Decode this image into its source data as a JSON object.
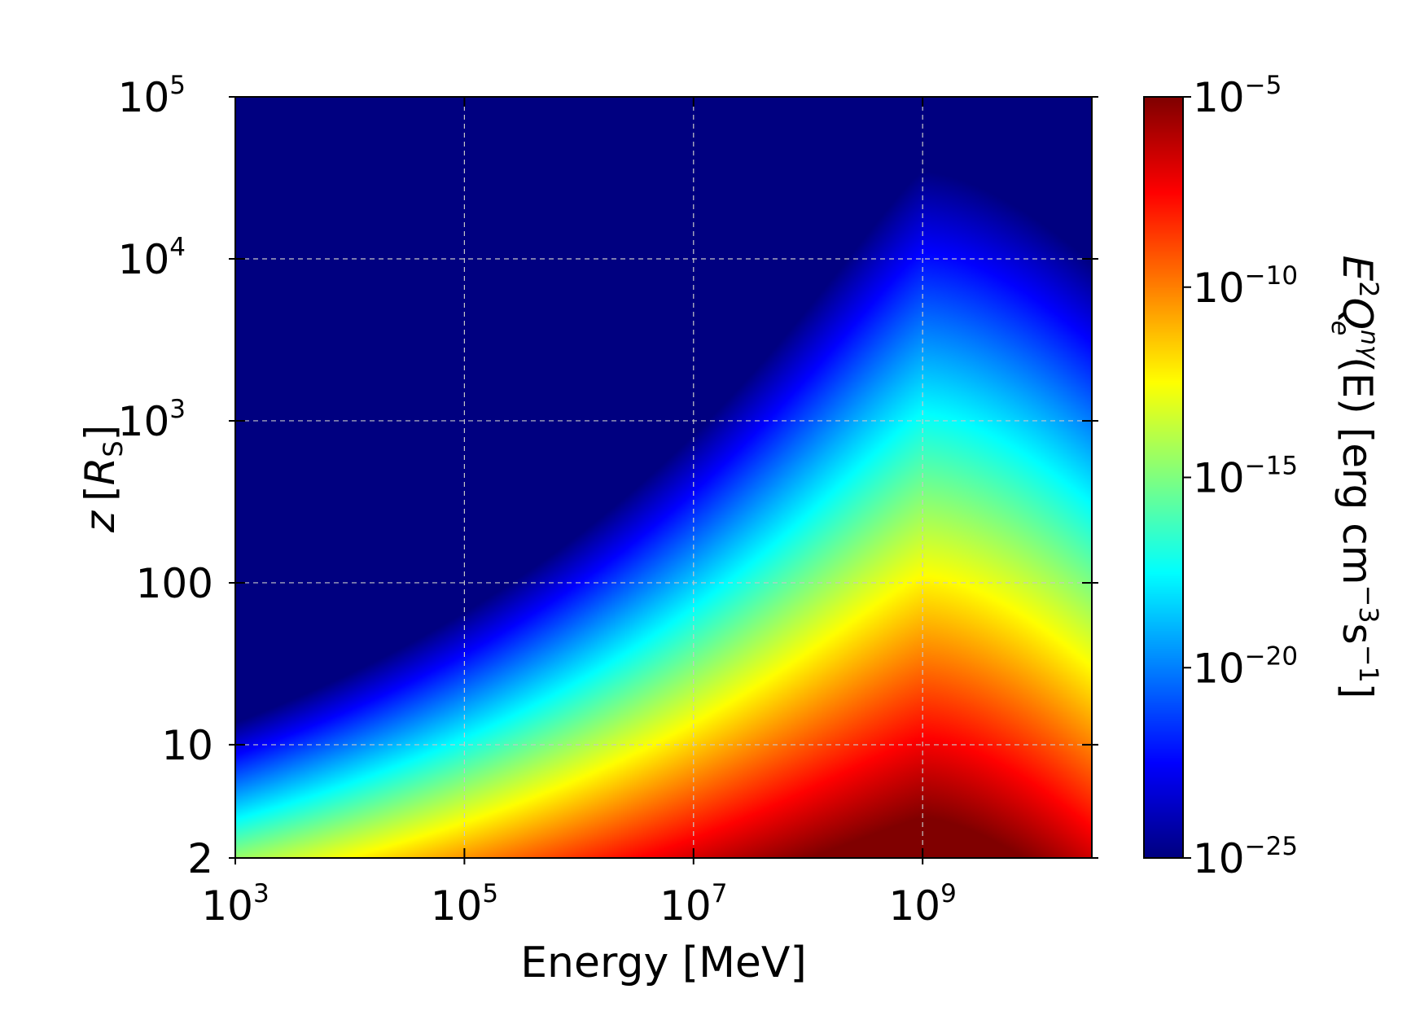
{
  "chart_data": {
    "type": "heatmap",
    "title": "",
    "xlabel": "Energy [MeV]",
    "ylabel_var": "z",
    "ylabel_unit_open": "[",
    "ylabel_unit_sym": "R",
    "ylabel_unit_sub": "S",
    "ylabel_unit_close": "]",
    "colorbar_label": {
      "E": "E",
      "E_exp": "2",
      "Q": "Q",
      "Q_sub": "e",
      "Q_sup": "nγ",
      "arg": "(E)",
      "units_lead": " [erg cm",
      "cm_exp": "−3",
      "s": "s",
      "s_exp": "−1",
      "units_close": "]"
    },
    "x_scale": "log",
    "y_scale": "log",
    "colorbar_scale": "log",
    "colormap": "jet",
    "xlim": [
      1000,
      30000000000
    ],
    "ylim": [
      2,
      100000
    ],
    "clim": [
      1e-25,
      1e-05
    ],
    "grid": true,
    "x_ticks": [
      {
        "value": 1000,
        "base": "10",
        "exp": "3"
      },
      {
        "value": 100000,
        "base": "10",
        "exp": "5"
      },
      {
        "value": 10000000,
        "base": "10",
        "exp": "7"
      },
      {
        "value": 1000000000,
        "base": "10",
        "exp": "9"
      }
    ],
    "y_ticks": [
      {
        "value": 2,
        "base": "2",
        "exp": ""
      },
      {
        "value": 10,
        "base": "10",
        "exp": ""
      },
      {
        "value": 100,
        "base": "100",
        "exp": ""
      },
      {
        "value": 1000,
        "base": "10",
        "exp": "3"
      },
      {
        "value": 10000,
        "base": "10",
        "exp": "4"
      },
      {
        "value": 100000,
        "base": "10",
        "exp": "5"
      }
    ],
    "colorbar_ticks": [
      {
        "value": 1e-25,
        "base": "10",
        "exp": "−25"
      },
      {
        "value": 1e-20,
        "base": "10",
        "exp": "−20"
      },
      {
        "value": 1e-15,
        "base": "10",
        "exp": "−15"
      },
      {
        "value": 1e-10,
        "base": "10",
        "exp": "−10"
      },
      {
        "value": 1e-05,
        "base": "10",
        "exp": "−5"
      }
    ],
    "peak": {
      "energy_MeV": 1000000000,
      "z_Rs": 3.5,
      "value": 1e-05
    }
  }
}
